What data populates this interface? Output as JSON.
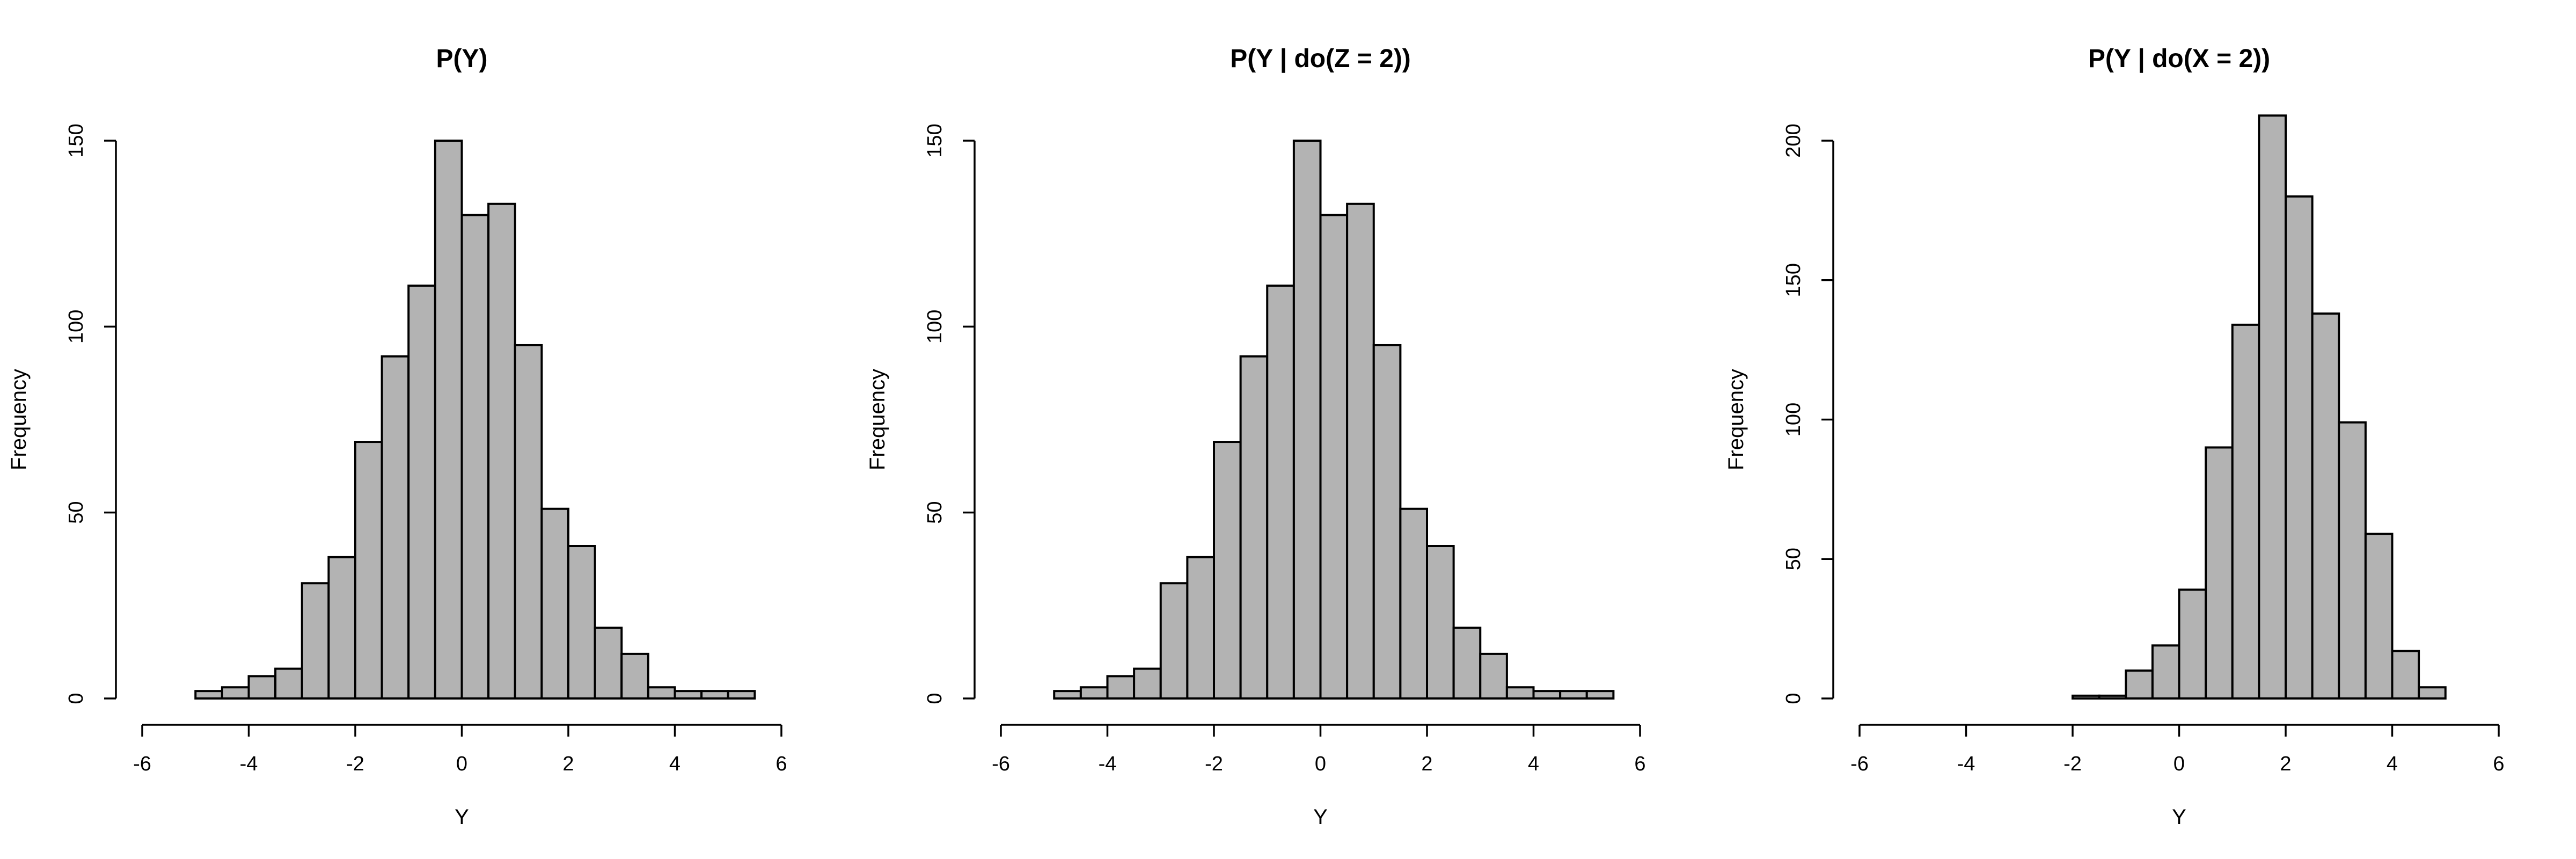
{
  "bar_color": "#b3b3b3",
  "chart_data": [
    {
      "type": "bar",
      "title": "P(Y)",
      "xlabel": "Y",
      "ylabel": "Frequency",
      "xlim": [
        -6,
        6
      ],
      "ylim": [
        0,
        150
      ],
      "xticks": [
        -6,
        -4,
        -2,
        0,
        2,
        4,
        6
      ],
      "yticks": [
        0,
        50,
        100,
        150
      ],
      "bin_width": 0.5,
      "bins_start": [
        -5.0,
        -4.5,
        -4.0,
        -3.5,
        -3.0,
        -2.5,
        -2.0,
        -1.5,
        -1.0,
        -0.5,
        0.0,
        0.5,
        1.0,
        1.5,
        2.0,
        2.5,
        3.0,
        3.5,
        4.0,
        4.5,
        5.0
      ],
      "values": [
        2,
        3,
        6,
        8,
        31,
        38,
        69,
        92,
        111,
        150,
        130,
        133,
        95,
        51,
        41,
        19,
        12,
        3,
        2,
        2,
        2
      ]
    },
    {
      "type": "bar",
      "title": "P(Y | do(Z = 2))",
      "xlabel": "Y",
      "ylabel": "Frequency",
      "xlim": [
        -6,
        6
      ],
      "ylim": [
        0,
        150
      ],
      "xticks": [
        -6,
        -4,
        -2,
        0,
        2,
        4,
        6
      ],
      "yticks": [
        0,
        50,
        100,
        150
      ],
      "bin_width": 0.5,
      "bins_start": [
        -5.0,
        -4.5,
        -4.0,
        -3.5,
        -3.0,
        -2.5,
        -2.0,
        -1.5,
        -1.0,
        -0.5,
        0.0,
        0.5,
        1.0,
        1.5,
        2.0,
        2.5,
        3.0,
        3.5,
        4.0,
        4.5,
        5.0
      ],
      "values": [
        2,
        3,
        6,
        8,
        31,
        38,
        69,
        92,
        111,
        150,
        130,
        133,
        95,
        51,
        41,
        19,
        12,
        3,
        2,
        2,
        2
      ]
    },
    {
      "type": "bar",
      "title": "P(Y | do(X = 2))",
      "xlabel": "Y",
      "ylabel": "Frequency",
      "xlim": [
        -6,
        6
      ],
      "ylim": [
        0,
        200
      ],
      "xticks": [
        -6,
        -4,
        -2,
        0,
        2,
        4,
        6
      ],
      "yticks": [
        0,
        50,
        100,
        150,
        200
      ],
      "bin_width": 0.5,
      "bins_start": [
        -2.0,
        -1.5,
        -1.0,
        -0.5,
        0.0,
        0.5,
        1.0,
        1.5,
        2.0,
        2.5,
        3.0,
        3.5,
        4.0,
        4.5
      ],
      "values": [
        1,
        1,
        10,
        19,
        39,
        90,
        134,
        209,
        180,
        138,
        99,
        59,
        17,
        4
      ]
    }
  ]
}
